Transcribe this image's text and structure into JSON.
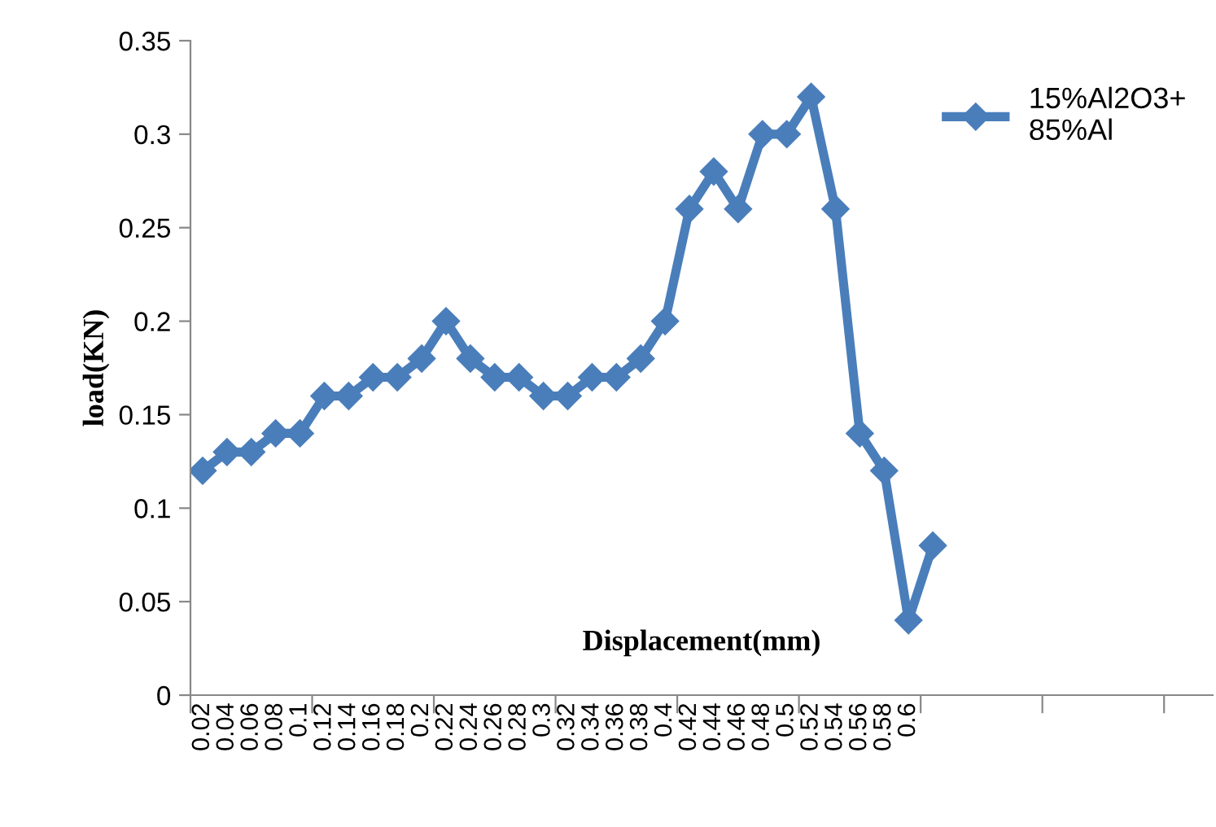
{
  "chart_data": {
    "type": "line",
    "xlabel": "Displacement(mm)",
    "ylabel": "load(KN)",
    "categories": [
      "0.02",
      "0.04",
      "0.06",
      "0.08",
      "0.1",
      "0.12",
      "0.14",
      "0.16",
      "0.18",
      "0.2",
      "0.22",
      "0.24",
      "0.26",
      "0.28",
      "0.3",
      "0.32",
      "0.34",
      "0.36",
      "0.38",
      "0.4",
      "0.42",
      "0.44",
      "0.46",
      "0.48",
      "0.5",
      "0.52",
      "0.54",
      "0.56",
      "0.58",
      "0.6",
      null,
      null,
      null,
      null,
      null,
      null,
      null,
      null,
      null,
      null,
      null,
      null
    ],
    "series": [
      {
        "name": "15%Al2O3+\n85%Al",
        "color": "#4a7ebb",
        "values": [
          0.12,
          0.13,
          0.13,
          0.14,
          0.14,
          0.16,
          0.16,
          0.17,
          0.17,
          0.18,
          0.2,
          0.18,
          0.17,
          0.17,
          0.16,
          0.16,
          0.17,
          0.17,
          0.18,
          0.2,
          0.26,
          0.28,
          0.26,
          0.3,
          0.3,
          0.32,
          0.26,
          0.14,
          0.12,
          0.04,
          0.08,
          null,
          null,
          null,
          null,
          null,
          null,
          null,
          null,
          null,
          null,
          null
        ]
      }
    ],
    "ylim": [
      0,
      0.35
    ],
    "yticks": [
      0,
      0.05,
      0.1,
      0.15,
      0.2,
      0.25,
      0.3,
      0.35
    ],
    "grid": false,
    "legend": "top right",
    "marker": "diamond",
    "line_style": "solid"
  }
}
